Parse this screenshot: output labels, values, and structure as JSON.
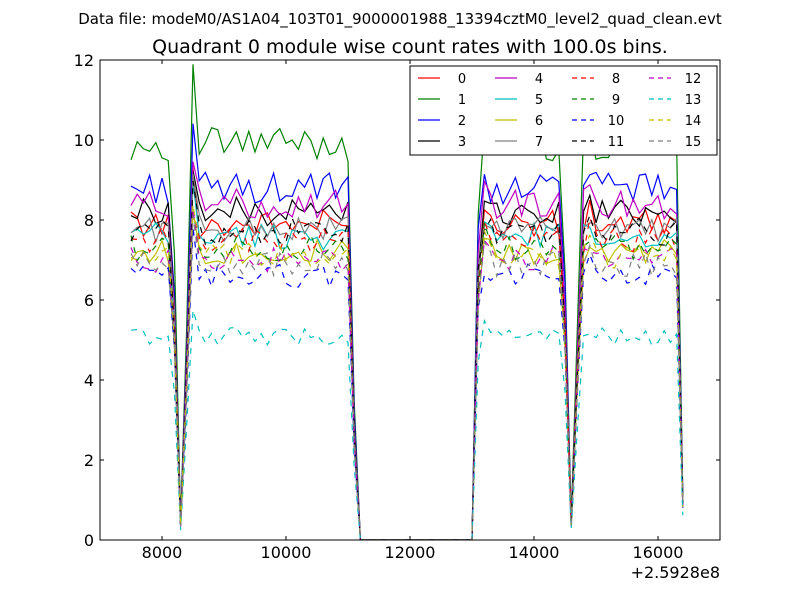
{
  "figure": {
    "suptitle": "Data file: modeM0/AS1A04_103T01_9000001988_13394cztM0_level2_quad_clean.evt",
    "title": "Quadrant 0 module wise count rates with 100.0s bins."
  },
  "chart_data": {
    "type": "line",
    "title": "Quadrant 0 module wise count rates with 100.0s bins.",
    "xlabel": "",
    "ylabel": "",
    "xlim": [
      7000,
      17000
    ],
    "ylim": [
      0,
      12
    ],
    "xticks": [
      8000,
      10000,
      12000,
      14000,
      16000
    ],
    "yticks": [
      0,
      2,
      4,
      6,
      8,
      10,
      12
    ],
    "x_offset_label": "+2.5928e8",
    "grid": false,
    "legend_placement": "upper-right",
    "legend_columns": 4,
    "x": [
      7500,
      7600,
      7700,
      7800,
      7900,
      8000,
      8100,
      8200,
      8300,
      8400,
      8500,
      8600,
      8700,
      8800,
      8900,
      9000,
      9100,
      9200,
      9300,
      9400,
      9500,
      9600,
      9700,
      9800,
      9900,
      10000,
      10100,
      10200,
      10300,
      10400,
      10500,
      10600,
      10700,
      10800,
      10900,
      11000,
      11100,
      11200,
      11300,
      11400,
      11500,
      11600,
      11700,
      11800,
      11900,
      12000,
      12100,
      12200,
      12300,
      12400,
      12500,
      12600,
      12700,
      12800,
      12900,
      13000,
      13100,
      13200,
      13300,
      13400,
      13500,
      13600,
      13700,
      13800,
      13900,
      14000,
      14100,
      14200,
      14300,
      14400,
      14500,
      14600,
      14700,
      14800,
      14900,
      15000,
      15100,
      15200,
      15300,
      15400,
      15500,
      15600,
      15700,
      15800,
      15900,
      16000,
      16100,
      16200,
      16300,
      16400
    ],
    "series": [
      {
        "name": "0",
        "color": "#ff0000",
        "dash": "solid",
        "level": 7.9
      },
      {
        "name": "1",
        "color": "#008000",
        "dash": "solid",
        "level": 9.9
      },
      {
        "name": "2",
        "color": "#0000ff",
        "dash": "solid",
        "level": 8.8
      },
      {
        "name": "3",
        "color": "#000000",
        "dash": "solid",
        "level": 8.2
      },
      {
        "name": "4",
        "color": "#bf00bf",
        "dash": "solid",
        "level": 8.4
      },
      {
        "name": "5",
        "color": "#00bfbf",
        "dash": "solid",
        "level": 7.6
      },
      {
        "name": "6",
        "color": "#bfbf00",
        "dash": "solid",
        "level": 7.2
      },
      {
        "name": "7",
        "color": "#808080",
        "dash": "solid",
        "level": 7.8
      },
      {
        "name": "8",
        "color": "#ff0000",
        "dash": "dashed",
        "level": 7.5
      },
      {
        "name": "9",
        "color": "#008000",
        "dash": "dashed",
        "level": 7.3
      },
      {
        "name": "10",
        "color": "#0000ff",
        "dash": "dashed",
        "level": 6.6
      },
      {
        "name": "11",
        "color": "#000000",
        "dash": "dashed",
        "level": 7.7
      },
      {
        "name": "12",
        "color": "#bf00bf",
        "dash": "dashed",
        "level": 7.0
      },
      {
        "name": "13",
        "color": "#00bfbf",
        "dash": "dashed",
        "level": 5.1
      },
      {
        "name": "14",
        "color": "#bfbf00",
        "dash": "dashed",
        "level": 7.1
      },
      {
        "name": "15",
        "color": "#808080",
        "dash": "dashed",
        "level": 6.9
      }
    ]
  }
}
